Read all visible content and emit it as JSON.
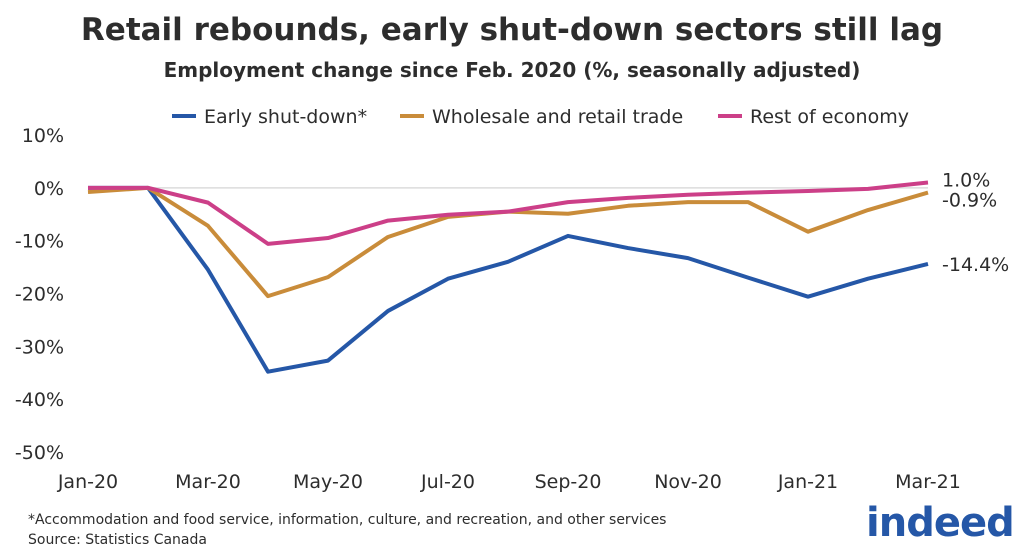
{
  "chart_data": {
    "type": "line",
    "title": "Retail rebounds, early shut-down sectors still lag",
    "subtitle": "Employment change since Feb. 2020 (%, seasonally adjusted)",
    "xlabel": "",
    "ylabel": "",
    "x": [
      "Jan-20",
      "Feb-20",
      "Mar-20",
      "Apr-20",
      "May-20",
      "Jun-20",
      "Jul-20",
      "Aug-20",
      "Sep-20",
      "Oct-20",
      "Nov-20",
      "Dec-20",
      "Jan-21",
      "Feb-21",
      "Mar-21"
    ],
    "x_tick_labels": [
      "Jan-20",
      "Mar-20",
      "May-20",
      "Jul-20",
      "Sep-20",
      "Nov-20",
      "Jan-21",
      "Mar-21"
    ],
    "y_tick_labels": [
      "10%",
      "0%",
      "-10%",
      "-20%",
      "-30%",
      "-40%",
      "-50%"
    ],
    "ylim": [
      -50,
      10
    ],
    "grid": false,
    "legend": "top",
    "series": [
      {
        "name": "Early shut-down*",
        "color": "#2557a7",
        "end_label": "-14.4%",
        "values": [
          0,
          0,
          -15.5,
          -34.8,
          -32.7,
          -23.3,
          -17.2,
          -14.0,
          -9.1,
          -11.4,
          -13.3,
          -17.0,
          -20.6,
          -17.2,
          -14.4
        ]
      },
      {
        "name": "Wholesale and retail trade",
        "color": "#c98c3a",
        "end_label": "-0.9%",
        "values": [
          -0.8,
          0,
          -7.2,
          -20.5,
          -16.9,
          -9.3,
          -5.5,
          -4.5,
          -4.9,
          -3.4,
          -2.7,
          -2.7,
          -8.3,
          -4.2,
          -0.9
        ]
      },
      {
        "name": "Rest of economy",
        "color": "#cc3f88",
        "end_label": "1.0%",
        "values": [
          0,
          0,
          -2.8,
          -10.6,
          -9.5,
          -6.2,
          -5.1,
          -4.5,
          -2.7,
          -1.9,
          -1.3,
          -0.9,
          -0.6,
          -0.2,
          1.0
        ]
      }
    ]
  },
  "footnote": "*Accommodation and food service, information, culture, and recreation, and other services",
  "source": "Source: Statistics Canada",
  "logo": "indeed"
}
